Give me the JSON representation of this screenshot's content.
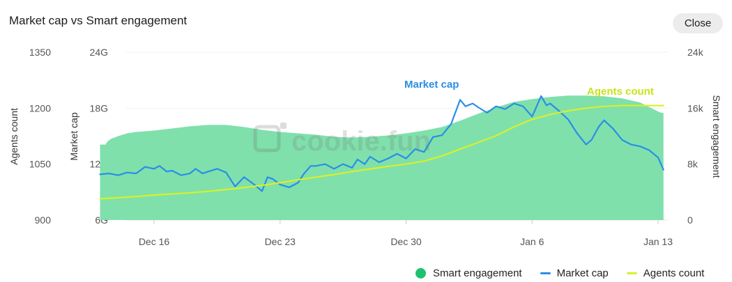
{
  "header": {
    "title": "Market cap vs Smart engagement",
    "close_label": "Close"
  },
  "watermark": {
    "text": "cookie.fun"
  },
  "legend": {
    "items": [
      {
        "label": "Smart engagement",
        "color": "#1ec26e",
        "shape": "dot"
      },
      {
        "label": "Market cap",
        "color": "#2a8ee6",
        "shape": "line"
      },
      {
        "label": "Agents count",
        "color": "#d8f02a",
        "shape": "line"
      }
    ]
  },
  "chart_data": {
    "type": "area",
    "title": "Market cap vs Smart engagement",
    "x_ticks": [
      "Dec 16",
      "Dec 23",
      "Dec 30",
      "Jan 6",
      "Jan 13"
    ],
    "x_range": [
      "Dec 13",
      "Jan 13"
    ],
    "axes": {
      "agents_count": {
        "label": "Agents count",
        "ticks": [
          "1350",
          "1200",
          "1050",
          "900"
        ],
        "range": [
          900,
          1350
        ],
        "side": "left"
      },
      "market_cap": {
        "label": "Market cap",
        "ticks": [
          "24G",
          "18G",
          "12G",
          "6G"
        ],
        "range": [
          6,
          24
        ],
        "unit": "G",
        "side": "left"
      },
      "smart_engagement": {
        "label": "Smart engagement",
        "ticks": [
          "24k",
          "16k",
          "8k",
          "0"
        ],
        "range": [
          0,
          24
        ],
        "unit": "k",
        "side": "right"
      }
    },
    "grid": true,
    "legend_position": "bottom-right",
    "annotations": [
      {
        "text": "Market cap",
        "color": "#2a8ee6",
        "series": "Market cap"
      },
      {
        "text": "Agents count",
        "color": "#c9e31a",
        "series": "Agents count"
      }
    ],
    "series": [
      {
        "name": "Smart engagement",
        "axis": "smart_engagement",
        "color": "#7fe0ac",
        "style": "area",
        "points": [
          [
            "Dec 13",
            10.8
          ],
          [
            "Dec 13.3",
            10.8
          ],
          [
            "Dec 13.4",
            11.2
          ],
          [
            "Dec 13.6",
            11.6
          ],
          [
            "Dec 14",
            12.0
          ],
          [
            "Dec 14.5",
            12.4
          ],
          [
            "Dec 15",
            12.6
          ],
          [
            "Dec 16",
            12.8
          ],
          [
            "Dec 17",
            13.1
          ],
          [
            "Dec 18",
            13.4
          ],
          [
            "Dec 19",
            13.6
          ],
          [
            "Dec 20",
            13.6
          ],
          [
            "Dec 21",
            13.3
          ],
          [
            "Dec 22",
            12.9
          ],
          [
            "Dec 23",
            12.6
          ],
          [
            "Dec 24",
            12.4
          ],
          [
            "Dec 25",
            12.2
          ],
          [
            "Dec 26",
            11.9
          ],
          [
            "Dec 27",
            11.8
          ],
          [
            "Dec 28",
            11.9
          ],
          [
            "Dec 29",
            12.1
          ],
          [
            "Dec 30",
            12.4
          ],
          [
            "Dec 31",
            12.8
          ],
          [
            "Jan 1",
            13.3
          ],
          [
            "Jan 2",
            14.2
          ],
          [
            "Jan 3",
            15.2
          ],
          [
            "Jan 4",
            16.1
          ],
          [
            "Jan 5",
            16.9
          ],
          [
            "Jan 6",
            17.3
          ],
          [
            "Jan 7",
            17.6
          ],
          [
            "Jan 8",
            17.8
          ],
          [
            "Jan 9",
            17.8
          ],
          [
            "Jan 10",
            17.7
          ],
          [
            "Jan 11",
            17.4
          ],
          [
            "Jan 12",
            16.8
          ],
          [
            "Jan 13.1",
            15.4
          ],
          [
            "Jan 13.3",
            15.3
          ]
        ]
      },
      {
        "name": "Market cap",
        "axis": "market_cap",
        "color": "#2a8ee6",
        "style": "line",
        "points": [
          [
            "Dec 13",
            10.9
          ],
          [
            "Dec 13.5",
            11.0
          ],
          [
            "Dec 14",
            10.8
          ],
          [
            "Dec 14.5",
            11.1
          ],
          [
            "Dec 15",
            11.0
          ],
          [
            "Dec 15.5",
            11.7
          ],
          [
            "Dec 16",
            11.5
          ],
          [
            "Dec 16.3",
            11.8
          ],
          [
            "Dec 16.7",
            11.2
          ],
          [
            "Dec 17",
            11.3
          ],
          [
            "Dec 17.5",
            10.8
          ],
          [
            "Dec 18",
            11.0
          ],
          [
            "Dec 18.3",
            11.5
          ],
          [
            "Dec 18.7",
            11.0
          ],
          [
            "Dec 19",
            11.2
          ],
          [
            "Dec 19.5",
            11.5
          ],
          [
            "Dec 20",
            11.1
          ],
          [
            "Dec 20.5",
            9.6
          ],
          [
            "Dec 21",
            10.6
          ],
          [
            "Dec 21.5",
            9.9
          ],
          [
            "Dec 22",
            9.1
          ],
          [
            "Dec 22.3",
            10.6
          ],
          [
            "Dec 22.6",
            10.4
          ],
          [
            "Dec 23",
            9.8
          ],
          [
            "Dec 23.5",
            9.5
          ],
          [
            "Dec 24",
            10.0
          ],
          [
            "Dec 24.3",
            10.9
          ],
          [
            "Dec 24.7",
            11.8
          ],
          [
            "Dec 25",
            11.8
          ],
          [
            "Dec 25.5",
            12.0
          ],
          [
            "Dec 26",
            11.5
          ],
          [
            "Dec 26.5",
            12.0
          ],
          [
            "Dec 27",
            11.6
          ],
          [
            "Dec 27.3",
            12.5
          ],
          [
            "Dec 27.7",
            12.0
          ],
          [
            "Dec 28",
            12.8
          ],
          [
            "Dec 28.5",
            12.2
          ],
          [
            "Dec 29",
            12.6
          ],
          [
            "Dec 29.5",
            13.1
          ],
          [
            "Dec 30",
            12.6
          ],
          [
            "Dec 30.5",
            13.6
          ],
          [
            "Dec 31",
            13.3
          ],
          [
            "Dec 31.5",
            14.9
          ],
          [
            "Jan 1",
            15.1
          ],
          [
            "Jan 1.5",
            16.3
          ],
          [
            "Jan 2",
            18.9
          ],
          [
            "Jan 2.3",
            18.2
          ],
          [
            "Jan 2.7",
            18.5
          ],
          [
            "Jan 3",
            18.1
          ],
          [
            "Jan 3.5",
            17.5
          ],
          [
            "Jan 4",
            18.2
          ],
          [
            "Jan 4.5",
            17.9
          ],
          [
            "Jan 5",
            18.5
          ],
          [
            "Jan 5.5",
            18.2
          ],
          [
            "Jan 6",
            17.1
          ],
          [
            "Jan 6.5",
            19.3
          ],
          [
            "Jan 6.8",
            18.3
          ],
          [
            "Jan 7",
            18.5
          ],
          [
            "Jan 7.5",
            17.7
          ],
          [
            "Jan 8",
            16.8
          ],
          [
            "Jan 8.5",
            15.3
          ],
          [
            "Jan 9",
            14.1
          ],
          [
            "Jan 9.3",
            14.6
          ],
          [
            "Jan 9.7",
            16.0
          ],
          [
            "Jan 10",
            16.7
          ],
          [
            "Jan 10.5",
            15.8
          ],
          [
            "Jan 11",
            14.6
          ],
          [
            "Jan 11.5",
            14.1
          ],
          [
            "Jan 12",
            13.9
          ],
          [
            "Jan 12.5",
            13.5
          ],
          [
            "Jan 13",
            12.7
          ],
          [
            "Jan 13.3",
            11.4
          ]
        ]
      },
      {
        "name": "Agents count",
        "axis": "agents_count",
        "color": "#d8f02a",
        "style": "line",
        "points": [
          [
            "Dec 13",
            957
          ],
          [
            "Dec 14",
            960
          ],
          [
            "Dec 15",
            963
          ],
          [
            "Dec 16",
            967
          ],
          [
            "Dec 17",
            970
          ],
          [
            "Dec 18",
            973
          ],
          [
            "Dec 19",
            977
          ],
          [
            "Dec 20",
            982
          ],
          [
            "Dec 21",
            987
          ],
          [
            "Dec 22",
            993
          ],
          [
            "Dec 23",
            1000
          ],
          [
            "Dec 24",
            1008
          ],
          [
            "Dec 25",
            1015
          ],
          [
            "Dec 26",
            1022
          ],
          [
            "Dec 27",
            1030
          ],
          [
            "Dec 28",
            1037
          ],
          [
            "Dec 29",
            1044
          ],
          [
            "Dec 30",
            1050
          ],
          [
            "Dec 31",
            1058
          ],
          [
            "Jan 1",
            1072
          ],
          [
            "Jan 2",
            1090
          ],
          [
            "Jan 3",
            1108
          ],
          [
            "Jan 4",
            1126
          ],
          [
            "Jan 5",
            1150
          ],
          [
            "Jan 6",
            1170
          ],
          [
            "Jan 7",
            1183
          ],
          [
            "Jan 8",
            1193
          ],
          [
            "Jan 9",
            1200
          ],
          [
            "Jan 10",
            1205
          ],
          [
            "Jan 11",
            1207
          ],
          [
            "Jan 12",
            1207
          ],
          [
            "Jan 13.3",
            1207
          ]
        ]
      }
    ]
  }
}
